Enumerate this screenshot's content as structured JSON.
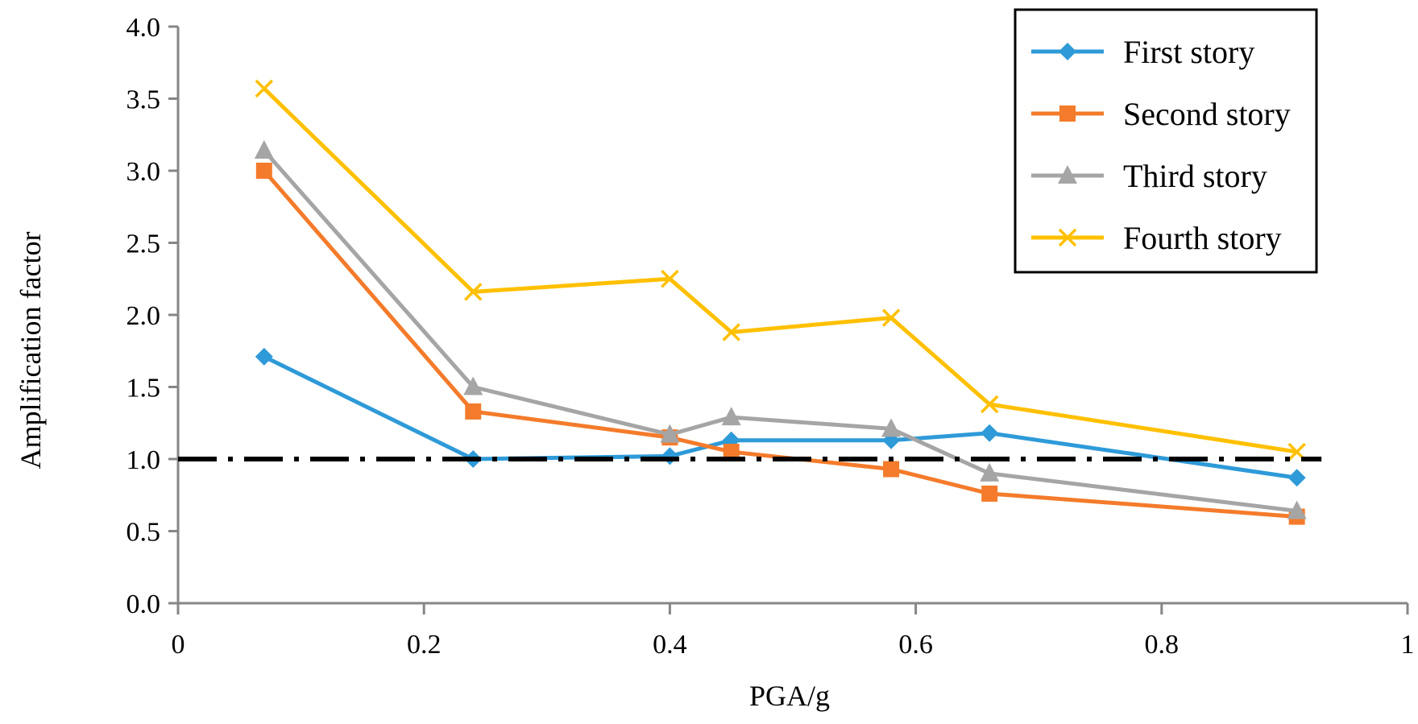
{
  "chart_data": {
    "type": "line",
    "title": "",
    "xlabel": "PGA/g",
    "ylabel": "Amplification factor",
    "xlim": [
      0,
      1
    ],
    "ylim": [
      0,
      4
    ],
    "xticks": [
      0,
      0.2,
      0.4,
      0.6,
      0.8,
      1
    ],
    "xtick_labels": [
      "0",
      "0.2",
      "0.4",
      "0.6",
      "0.8",
      "1"
    ],
    "yticks": [
      0,
      0.5,
      1,
      1.5,
      2,
      2.5,
      3,
      3.5,
      4
    ],
    "ytick_labels": [
      "0.0",
      "0.5",
      "1.0",
      "1.5",
      "2.0",
      "2.5",
      "3.0",
      "3.5",
      "4.0"
    ],
    "grid": false,
    "legend_position": "top-right",
    "x": [
      0.07,
      0.24,
      0.4,
      0.45,
      0.58,
      0.66,
      0.91
    ],
    "series": [
      {
        "name": "First story",
        "color": "#2E9AD8",
        "marker": "diamond",
        "values": [
          1.71,
          1.0,
          1.02,
          1.13,
          1.13,
          1.18,
          0.87
        ]
      },
      {
        "name": "Second story",
        "color": "#F47B2B",
        "marker": "square",
        "values": [
          3.0,
          1.33,
          1.15,
          1.05,
          0.93,
          0.76,
          0.6
        ]
      },
      {
        "name": "Third story",
        "color": "#A5A5A5",
        "marker": "triangle",
        "values": [
          3.14,
          1.5,
          1.17,
          1.29,
          1.21,
          0.9,
          0.64
        ]
      },
      {
        "name": "Fourth story",
        "color": "#FFC000",
        "marker": "x",
        "values": [
          3.57,
          2.16,
          2.25,
          1.88,
          1.98,
          1.38,
          1.05
        ]
      }
    ],
    "reference_line": {
      "y": 1.0,
      "style": "dash-dot",
      "color": "#000000"
    }
  }
}
